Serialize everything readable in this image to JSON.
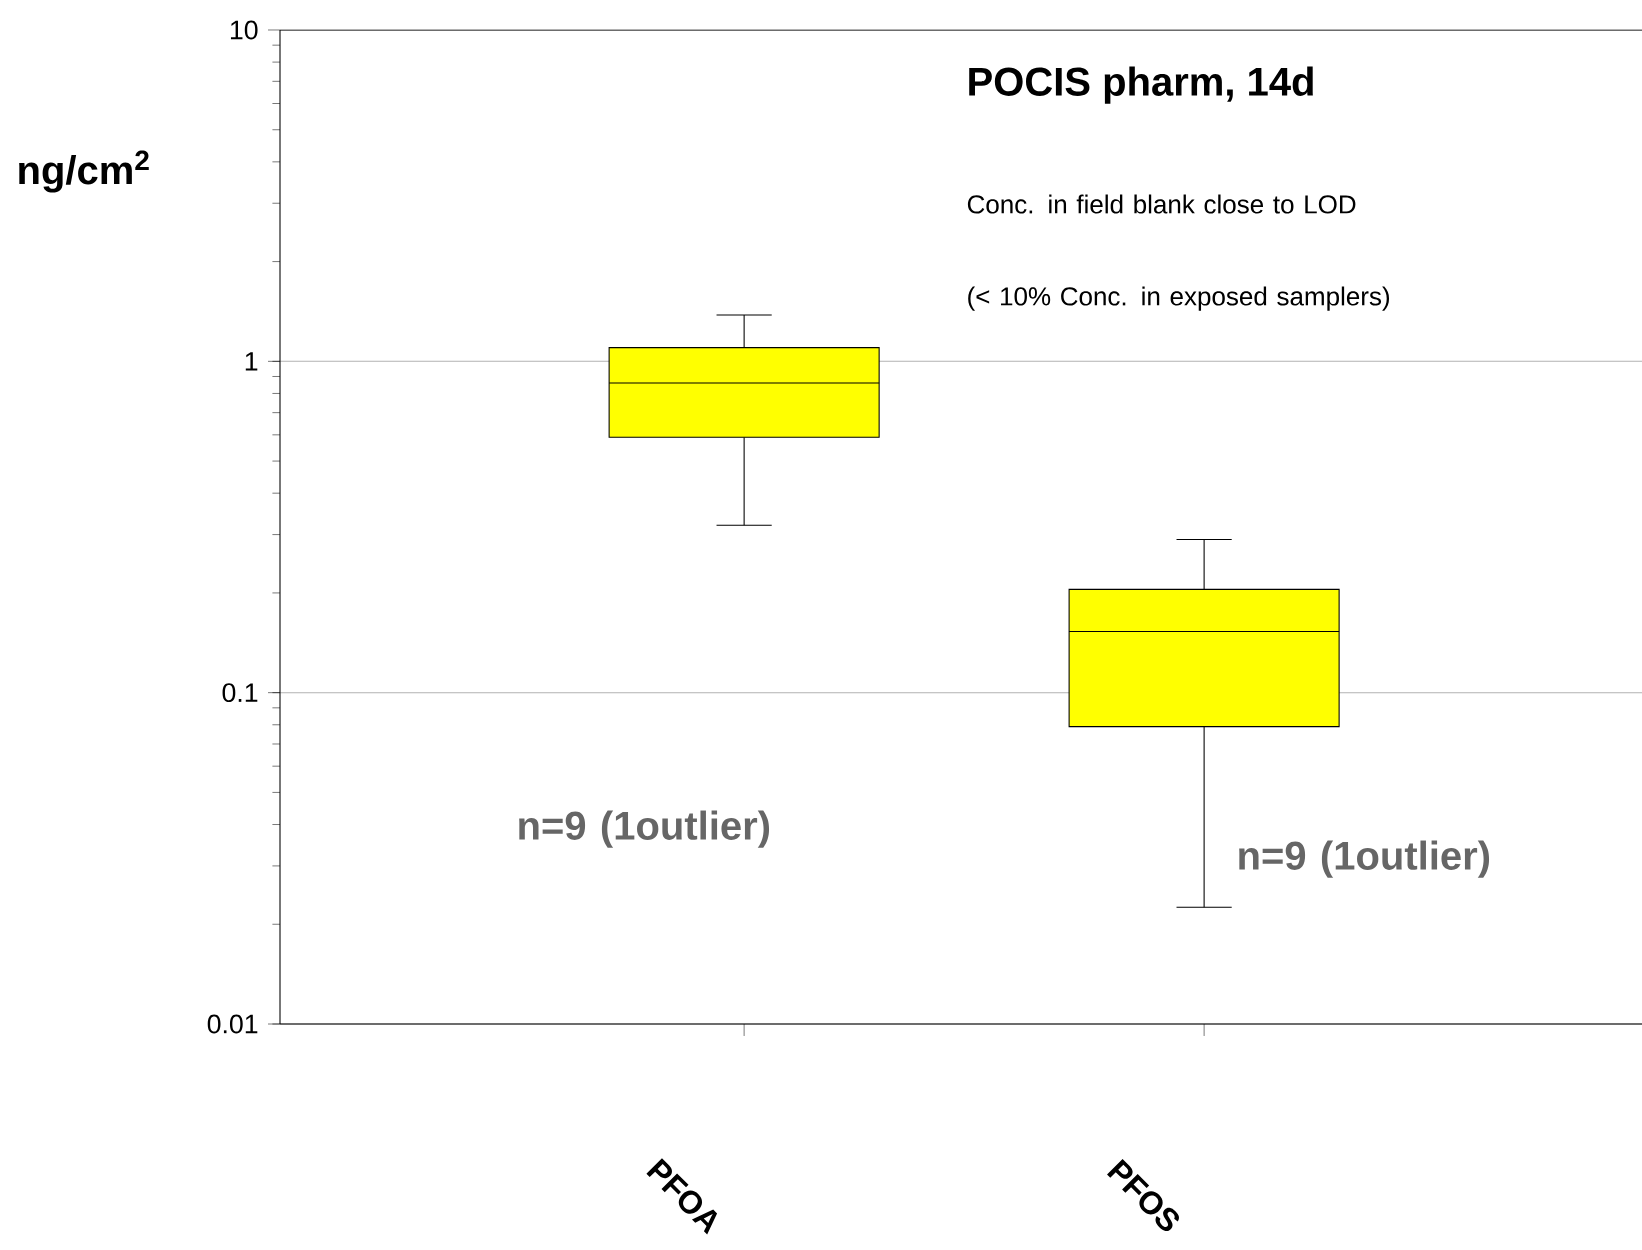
{
  "chart_data": {
    "type": "box",
    "title": "POCIS pharm, 14d",
    "ylabel": "ng/cm$^{2}$",
    "categories": [
      "PFOA",
      "PFOS"
    ],
    "boxes": [
      {
        "low": 0.32,
        "q1": 0.59,
        "median": 0.86,
        "q3": 1.1,
        "high": 1.38
      },
      {
        "low": 0.0225,
        "q1": 0.079,
        "median": 0.153,
        "q3": 0.205,
        "high": 0.29
      }
    ],
    "color": "#ffff00",
    "log": true,
    "ylim": [
      0.01,
      10
    ],
    "yticks": [
      0.01,
      0.1,
      1,
      10
    ],
    "grid": "y",
    "annotations": [
      "Conc. in field blank close to LOD",
      "(< 10% Conc. in exposed samplers)",
      "n=9 (1outlier)",
      "n=9 (1outlier)"
    ]
  }
}
